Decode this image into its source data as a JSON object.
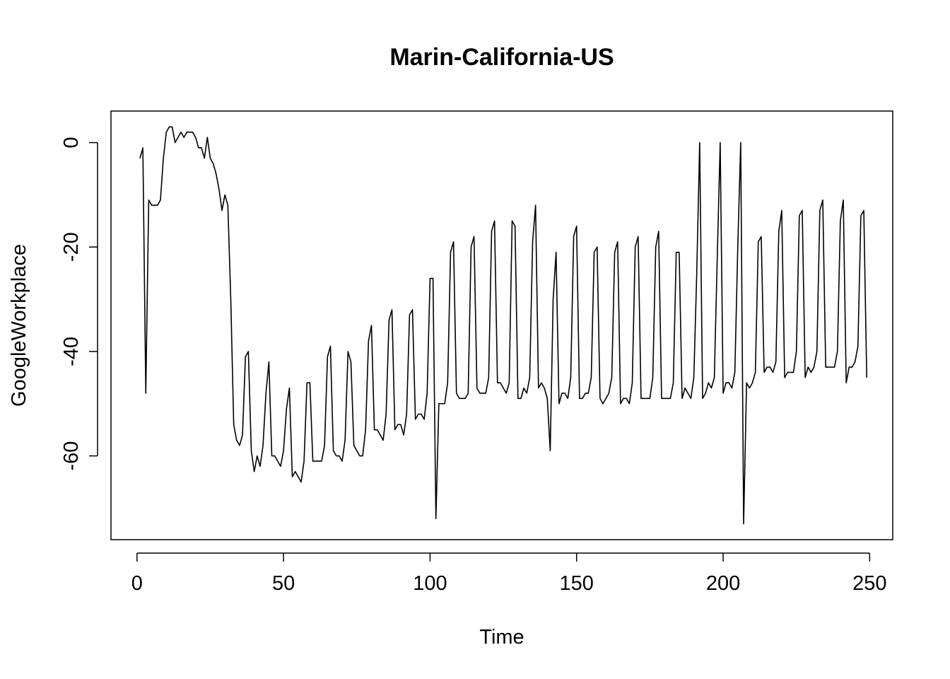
{
  "chart_data": {
    "type": "line",
    "title": "Marin-California-US",
    "xlabel": "Time",
    "ylabel": "GoogleWorkplace",
    "xlim": [
      1,
      248
    ],
    "ylim": [
      -73,
      3
    ],
    "xticks": [
      0,
      50,
      100,
      150,
      200,
      250
    ],
    "xtick_labels": [
      "0",
      "50",
      "100",
      "150",
      "200",
      "250"
    ],
    "yticks": [
      0,
      -20,
      -40,
      -60
    ],
    "ytick_labels": [
      "0",
      "-20",
      "-40",
      "-60"
    ],
    "grid": false,
    "legend": "none",
    "line_color": "#000000",
    "series": [
      {
        "x_start": 1,
        "values": [
          -3,
          -1,
          -48,
          -11,
          -12,
          -12,
          -12,
          -11,
          -3,
          2,
          3,
          3,
          0,
          1,
          2,
          1,
          2,
          2,
          2,
          1,
          -1,
          -1,
          -3,
          1,
          -3,
          -4,
          -6,
          -9,
          -13,
          -10,
          -12,
          -30,
          -54,
          -57,
          -58,
          -56,
          -41,
          -40,
          -59,
          -63,
          -60,
          -62,
          -58,
          -48,
          -42,
          -60,
          -60,
          -61,
          -62,
          -59,
          -51,
          -47,
          -64,
          -63,
          -64,
          -65,
          -61,
          -46,
          -46,
          -61,
          -61,
          -61,
          -61,
          -58,
          -41,
          -39,
          -59,
          -60,
          -60,
          -61,
          -57,
          -40,
          -42,
          -58,
          -59,
          -60,
          -60,
          -55,
          -38,
          -35,
          -55,
          -55,
          -56,
          -57,
          -52,
          -34,
          -32,
          -55,
          -54,
          -54,
          -56,
          -52,
          -33,
          -32,
          -53,
          -52,
          -52,
          -53,
          -48,
          -26,
          -26,
          -72,
          -50,
          -50,
          -50,
          -46,
          -21,
          -19,
          -48,
          -49,
          -49,
          -49,
          -48,
          -20,
          -18,
          -47,
          -48,
          -48,
          -48,
          -45,
          -17,
          -15,
          -46,
          -46,
          -47,
          -48,
          -46,
          -15,
          -16,
          -49,
          -49,
          -47,
          -48,
          -45,
          -19,
          -12,
          -47,
          -46,
          -47,
          -49,
          -59,
          -30,
          -21,
          -50,
          -48,
          -48,
          -49,
          -45,
          -18,
          -16,
          -49,
          -49,
          -48,
          -48,
          -45,
          -21,
          -20,
          -49,
          -50,
          -49,
          -48,
          -45,
          -21,
          -19,
          -50,
          -49,
          -49,
          -50,
          -46,
          -20,
          -18,
          -49,
          -49,
          -49,
          -49,
          -45,
          -20,
          -17,
          -49,
          -49,
          -49,
          -49,
          -46,
          -21,
          -21,
          -49,
          -47,
          -48,
          -49,
          -45,
          -25,
          0,
          -49,
          -48,
          -46,
          -47,
          -45,
          -22,
          0,
          -48,
          -46,
          -46,
          -47,
          -44,
          -20,
          0,
          -73,
          -46,
          -47,
          -46,
          -44,
          -19,
          -18,
          -44,
          -43,
          -43,
          -44,
          -42,
          -17,
          -13,
          -45,
          -44,
          -44,
          -44,
          -40,
          -14,
          -13,
          -45,
          -43,
          -44,
          -43,
          -40,
          -13,
          -11,
          -43,
          -43,
          -43,
          -43,
          -40,
          -15,
          -11,
          -46,
          -43,
          -43,
          -42,
          -39,
          -14,
          -13,
          -45
        ]
      }
    ]
  }
}
